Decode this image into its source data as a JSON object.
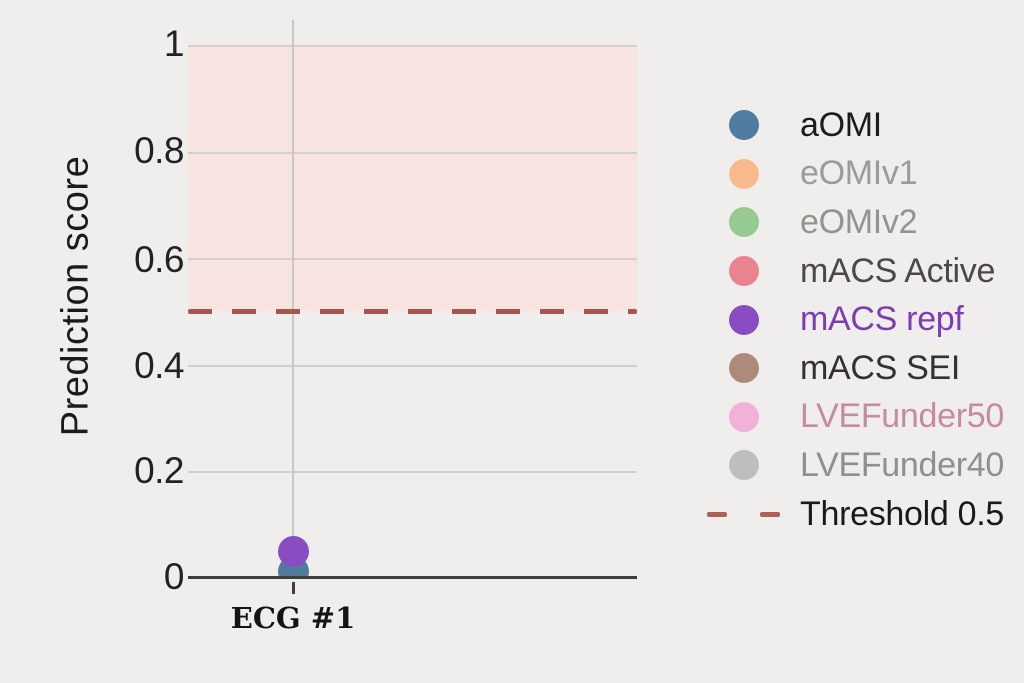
{
  "chart_data": {
    "type": "scatter",
    "title": "",
    "xlabel": "",
    "ylabel": "Prediction score",
    "categories": [
      "ECG #1"
    ],
    "ylim": [
      0,
      1
    ],
    "yticks": [
      1,
      0.8,
      0.6,
      0.4,
      0.2,
      0
    ],
    "ytick_labels": [
      "1",
      "0.8",
      "0.6",
      "0.4",
      "0.2",
      "0"
    ],
    "grid": true,
    "legend_position": "right",
    "series": [
      {
        "name": "aOMI",
        "color": "#507c9f",
        "label_color": "#1c1c1c",
        "points": [
          {
            "category": "ECG #1",
            "value": 0.012
          }
        ]
      },
      {
        "name": "eOMIv1",
        "color": "#f8ba8c",
        "label_color": "#9b9b9b",
        "points": []
      },
      {
        "name": "eOMIv2",
        "color": "#97ca90",
        "label_color": "#8f968f",
        "points": []
      },
      {
        "name": "mACS Active",
        "color": "#e9838f",
        "label_color": "#4c4749",
        "points": []
      },
      {
        "name": "mACS repf",
        "color": "#8a4cc3",
        "label_color": "#7e3cb3",
        "points": [
          {
            "category": "ECG #1",
            "value": 0.049
          }
        ]
      },
      {
        "name": "mACS SEI",
        "color": "#ae8a7d",
        "label_color": "#353032",
        "points": []
      },
      {
        "name": "LVEFunder50",
        "color": "#f1b2d7",
        "label_color": "#c48ca0",
        "points": []
      },
      {
        "name": "LVEFunder40",
        "color": "#bfbebe",
        "label_color": "#8f8f8f",
        "points": []
      }
    ],
    "threshold": {
      "label": "Threshold 0.5",
      "value": 0.5,
      "line_color": "#a5574f",
      "legend_dash_color": "#b05f57",
      "label_color": "#1a1a1a"
    },
    "shaded_region": {
      "from": 0.5,
      "to": 1.0,
      "color": "#f7e4e1"
    },
    "background_color": "#efeeec"
  }
}
